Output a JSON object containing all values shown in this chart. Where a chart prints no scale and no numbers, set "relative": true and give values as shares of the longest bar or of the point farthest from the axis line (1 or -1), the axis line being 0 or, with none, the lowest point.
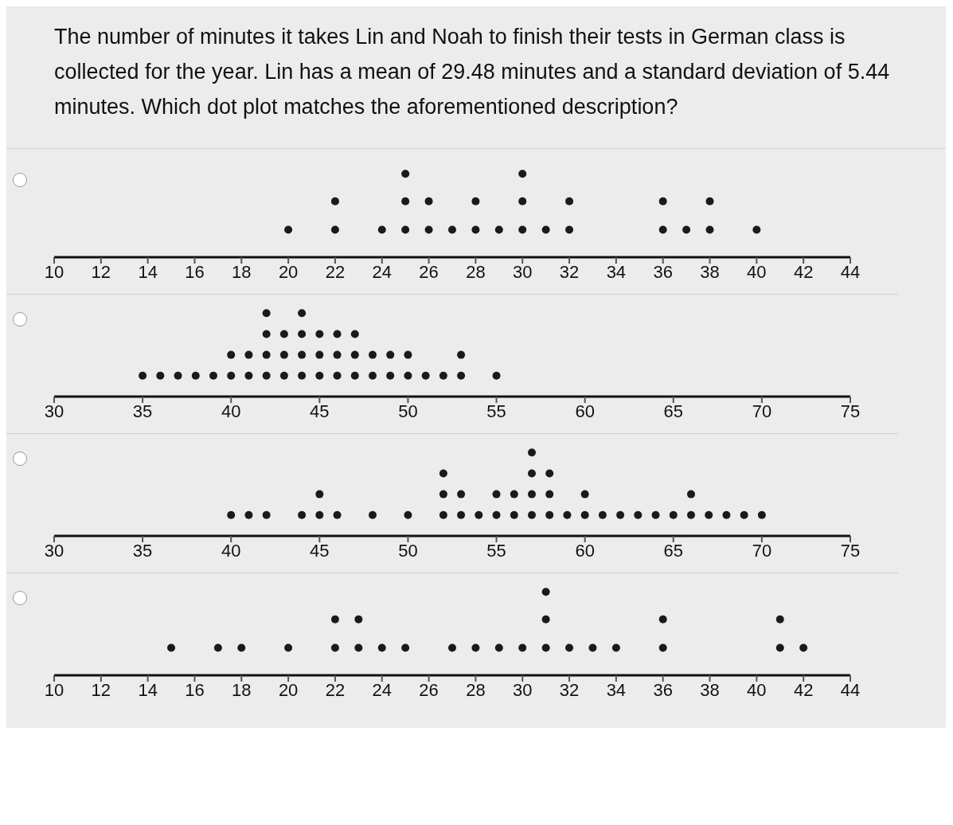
{
  "chart_data": [
    {
      "type": "scatter",
      "title": "The number of minutes it takes Lin and Noah to finish their tests in German class is collected for the year. Lin has a mean of 29.48 minutes and a standard deviation of 5.44 minutes. Which dot plot matches the aforementioned description?",
      "relative": true,
      "marker": "circle",
      "tick_labels": "x",
      "xlim": [
        10,
        44
      ],
      "xticks": [
        10,
        12,
        14,
        16,
        18,
        20,
        22,
        24,
        26,
        28,
        30,
        32,
        34,
        36,
        38,
        40,
        42,
        44
      ],
      "series": [
        {
          "color": "#1a1a1a",
          "x": [
            20,
            22,
            22,
            24,
            25,
            25,
            25,
            26,
            26,
            27,
            28,
            28,
            29,
            30,
            30,
            30,
            31,
            32,
            32,
            36,
            36,
            37,
            38,
            38,
            40
          ],
          "values": [
            0.33,
            0.33,
            0.67,
            0.33,
            0.33,
            0.67,
            1,
            0.33,
            0.67,
            0.33,
            0.33,
            0.67,
            0.33,
            0.33,
            0.67,
            1,
            0.33,
            0.33,
            0.67,
            0.33,
            0.67,
            0.33,
            0.33,
            0.67,
            0.33
          ]
        }
      ]
    },
    {
      "type": "scatter",
      "relative": true,
      "marker": "circle",
      "tick_labels": "x",
      "xlim": [
        30,
        75
      ],
      "xticks": [
        30,
        35,
        40,
        45,
        50,
        55,
        60,
        65,
        70,
        75
      ],
      "series": [
        {
          "color": "#1a1a1a",
          "x": [
            35,
            36,
            37,
            38,
            39,
            40,
            40,
            41,
            41,
            42,
            42,
            42,
            42,
            43,
            43,
            43,
            44,
            44,
            44,
            44,
            45,
            45,
            45,
            46,
            46,
            46,
            47,
            47,
            47,
            48,
            48,
            49,
            49,
            50,
            50,
            51,
            52,
            53,
            53,
            55
          ],
          "values": [
            0.25,
            0.25,
            0.25,
            0.25,
            0.25,
            0.25,
            0.5,
            0.25,
            0.5,
            0.25,
            0.5,
            0.75,
            1,
            0.25,
            0.5,
            0.75,
            0.25,
            0.5,
            0.75,
            1,
            0.25,
            0.5,
            0.75,
            0.25,
            0.5,
            0.75,
            0.25,
            0.5,
            0.75,
            0.25,
            0.5,
            0.25,
            0.5,
            0.25,
            0.5,
            0.25,
            0.25,
            0.25,
            0.5,
            0.25
          ]
        }
      ]
    },
    {
      "type": "scatter",
      "relative": true,
      "marker": "circle",
      "tick_labels": "x",
      "xlim": [
        30,
        75
      ],
      "xticks": [
        30,
        35,
        40,
        45,
        50,
        55,
        60,
        65,
        70,
        75
      ],
      "series": [
        {
          "color": "#1a1a1a",
          "x": [
            40,
            41,
            42,
            44,
            45,
            45,
            46,
            48,
            50,
            52,
            52,
            52,
            53,
            53,
            54,
            55,
            55,
            56,
            56,
            57,
            57,
            57,
            57,
            58,
            58,
            58,
            59,
            60,
            60,
            61,
            62,
            63,
            64,
            65,
            66,
            66,
            67,
            68,
            69,
            70
          ],
          "values": [
            0.25,
            0.25,
            0.25,
            0.25,
            0.25,
            0.5,
            0.25,
            0.25,
            0.25,
            0.25,
            0.5,
            0.75,
            0.25,
            0.5,
            0.25,
            0.25,
            0.5,
            0.25,
            0.5,
            0.25,
            0.5,
            0.75,
            1,
            0.25,
            0.5,
            0.75,
            0.25,
            0.25,
            0.5,
            0.25,
            0.25,
            0.25,
            0.25,
            0.25,
            0.25,
            0.5,
            0.25,
            0.25,
            0.25,
            0.25
          ]
        }
      ]
    },
    {
      "type": "scatter",
      "relative": true,
      "marker": "circle",
      "tick_labels": "x",
      "xlim": [
        10,
        44
      ],
      "xticks": [
        10,
        12,
        14,
        16,
        18,
        20,
        22,
        24,
        26,
        28,
        30,
        32,
        34,
        36,
        38,
        40,
        42,
        44
      ],
      "series": [
        {
          "color": "#1a1a1a",
          "x": [
            15,
            17,
            18,
            20,
            22,
            22,
            23,
            23,
            24,
            25,
            27,
            28,
            29,
            30,
            31,
            31,
            31,
            32,
            33,
            34,
            36,
            36,
            41,
            41,
            42
          ],
          "values": [
            0.33,
            0.33,
            0.33,
            0.33,
            0.33,
            0.67,
            0.33,
            0.67,
            0.33,
            0.33,
            0.33,
            0.33,
            0.33,
            0.33,
            0.33,
            0.67,
            1,
            0.33,
            0.33,
            0.33,
            0.33,
            0.67,
            0.33,
            0.67,
            0.33
          ]
        }
      ]
    }
  ]
}
